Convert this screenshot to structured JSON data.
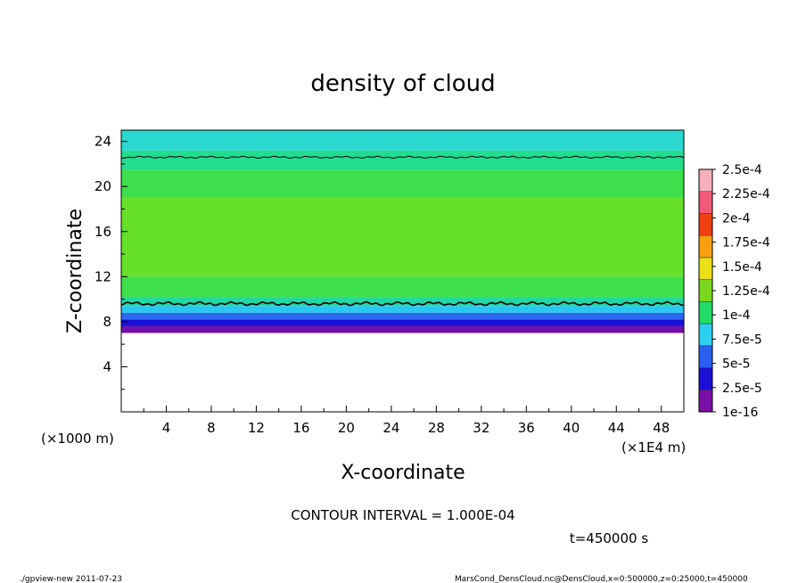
{
  "chart_data": {
    "type": "heatmap",
    "title": "density of cloud",
    "xlabel": "X-coordinate",
    "ylabel": "Z-coordinate",
    "x_unit": "(×1E4 m)",
    "y_unit": "(×1000 m)",
    "xlim": [
      0,
      50
    ],
    "ylim": [
      0,
      25
    ],
    "x_ticks": [
      "4",
      "8",
      "12",
      "16",
      "20",
      "24",
      "28",
      "32",
      "36",
      "40",
      "44",
      "48"
    ],
    "y_ticks": [
      "4",
      "8",
      "12",
      "16",
      "20",
      "24"
    ],
    "contour_interval": "CONTOUR INTERVAL = 1.000E-04",
    "contour_level": 0.0001,
    "time_label": "t=450000 s",
    "colorbar": {
      "labels": [
        "1e-16",
        "2.5e-5",
        "5e-5",
        "7.5e-5",
        "1e-4",
        "1.25e-4",
        "1.5e-4",
        "1.75e-4",
        "2e-4",
        "2.25e-4",
        "2.5e-4"
      ],
      "colors": [
        "#7a10a8",
        "#1c10d6",
        "#2a60f0",
        "#2bd0f0",
        "#22dc66",
        "#7ad81e",
        "#ece018",
        "#f8a010",
        "#f04010",
        "#f05a78",
        "#f7b0ba"
      ]
    },
    "cloud_layer": {
      "bottom_z": 7.0,
      "top_z": 23.0,
      "lower_contour_z": 9.6,
      "upper_contour_z": 22.6
    },
    "bands": [
      {
        "z_from": 7.0,
        "z_to": 7.6,
        "color": "#7010a8"
      },
      {
        "z_from": 7.6,
        "z_to": 8.2,
        "color": "#1810d8"
      },
      {
        "z_from": 8.2,
        "z_to": 8.8,
        "color": "#2a68f0"
      },
      {
        "z_from": 8.8,
        "z_to": 9.4,
        "color": "#28c8f0"
      },
      {
        "z_from": 9.4,
        "z_to": 10.2,
        "color": "#22d8a0"
      },
      {
        "z_from": 10.2,
        "z_to": 12.0,
        "color": "#3fe04a"
      },
      {
        "z_from": 12.0,
        "z_to": 19.0,
        "color": "#66e028"
      },
      {
        "z_from": 19.0,
        "z_to": 21.5,
        "color": "#3ede4c"
      },
      {
        "z_from": 21.5,
        "z_to": 23.2,
        "color": "#22dc90"
      },
      {
        "z_from": 23.2,
        "z_to": 25.0,
        "color": "#2ad8d0"
      }
    ]
  },
  "footer": {
    "left": "./gpview-new  2011-07-23",
    "right": "MarsCond_DensCloud.nc@DensCloud,x=0:500000,z=0:25000,t=450000"
  }
}
